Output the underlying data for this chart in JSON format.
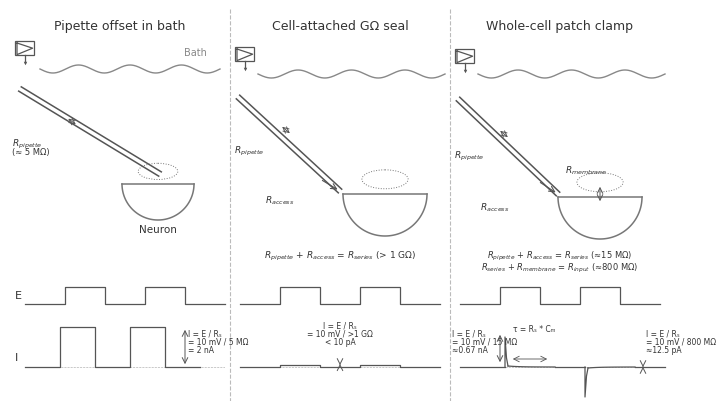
{
  "col1_title": "Pipette offset in bath",
  "col2_title": "Cell-attached GΩ seal",
  "col3_title": "Whole-cell patch clamp",
  "col1_label_bath": "Bath",
  "col1_label_neuron": "Neuron",
  "col1_r_pipette_val": "(≈ 5 MΩ)",
  "col2_i_text1": "I = E / Rₛ",
  "col2_i_text2": "= 10 mV / >1 GΩ",
  "col2_i_text3": "< 10 pA",
  "col1_i_text1": "I = E / Rₛ",
  "col1_i_text2": "= 10 mV / 5 MΩ",
  "col1_i_text3": "= 2 nA",
  "col3_i_left1": "I = E / Rₛ",
  "col3_i_left2": "= 10 mV / 15 MΩ",
  "col3_i_left3": "≈0.67 nA",
  "col3_tau": "τ = Rₛ * Cₘ",
  "col3_i_right1": "I = E / Rₛ",
  "col3_i_right2": "= 10 mV / 800 MΩ",
  "col3_i_right3": "≈12.5 pA",
  "bg_color": "#ffffff",
  "line_color": "#555555",
  "text_color": "#333333",
  "gray_color": "#888888"
}
